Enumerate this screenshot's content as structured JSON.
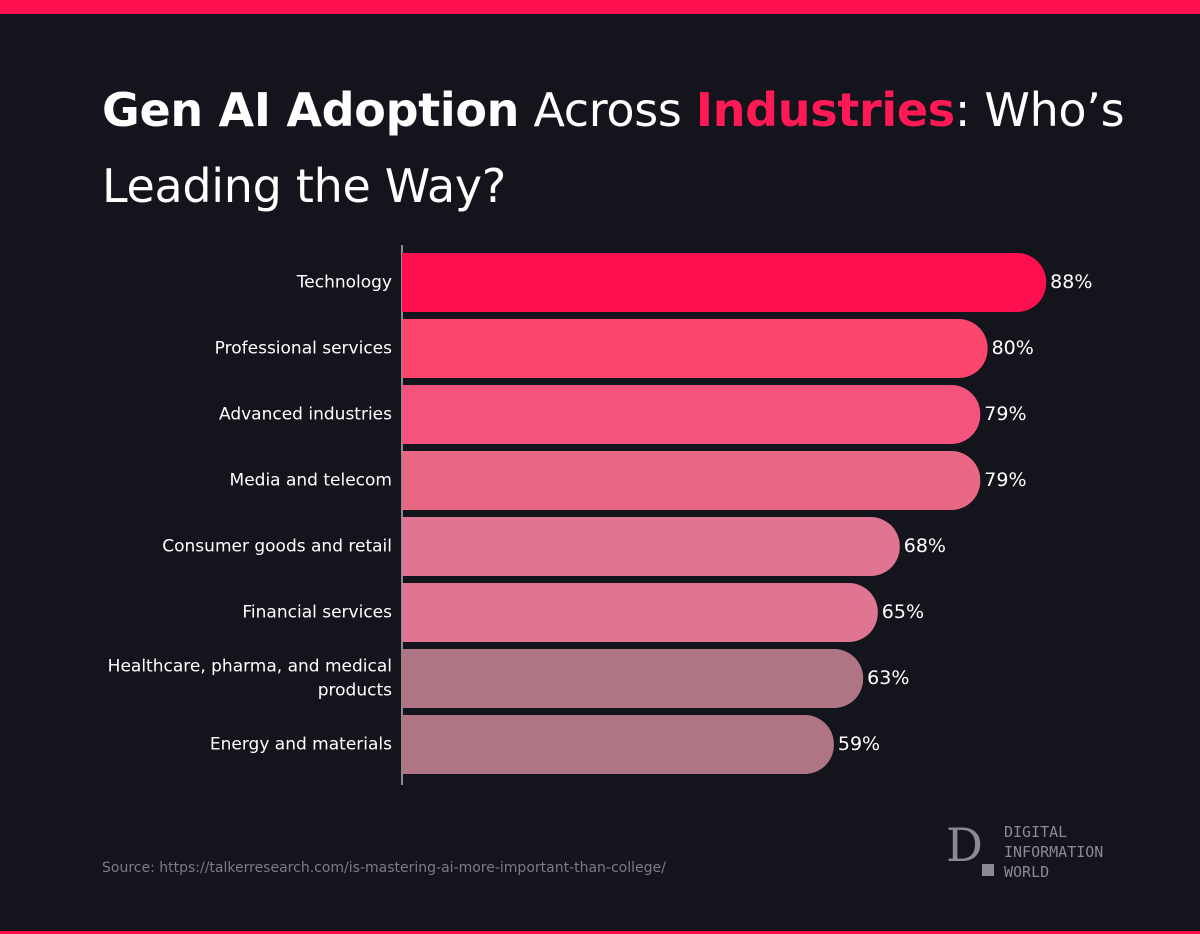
{
  "title": {
    "part1": "Gen AI Adoption",
    "part2": " Across ",
    "part3": "Industries",
    "part4": ": Who’s Leading the Way?"
  },
  "source": "Source: https://talkerresearch.com/is-mastering-ai-more-important-than-college/",
  "logo": {
    "line1": "DIGITAL",
    "line2": "INFORMATION",
    "line3": "WORLD"
  },
  "colors": {
    "background": "#14141c",
    "accent": "#ff1050"
  },
  "chart_data": {
    "type": "bar",
    "orientation": "horizontal",
    "categories": [
      "Technology",
      "Professional services",
      "Advanced industries",
      "Media and telecom",
      "Consumer goods and retail",
      "Financial services",
      "Healthcare, pharma, and medical products",
      "Energy and materials"
    ],
    "values": [
      88,
      80,
      79,
      79,
      68,
      65,
      63,
      59
    ],
    "labels": [
      "88%",
      "80%",
      "79%",
      "79%",
      "68%",
      "65%",
      "63%",
      "59%"
    ],
    "unit": "%",
    "xlim": [
      0,
      100
    ],
    "bar_colors": [
      "#ff0f4f",
      "#fd466e",
      "#f4537e",
      "#e86785",
      "#e07592",
      "#e07592",
      "#b07584",
      "#b07584"
    ],
    "grid": false,
    "legend": "none"
  }
}
